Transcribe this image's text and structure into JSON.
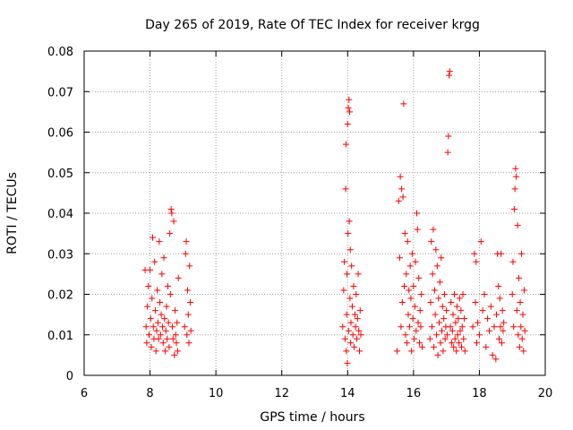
{
  "chart_data": {
    "type": "scatter",
    "title": "Day 265 of 2019, Rate Of TEC Index for receiver krgg",
    "xlabel": "GPS time / hours",
    "ylabel": "ROTI / TECUs",
    "xlim": [
      6,
      20
    ],
    "ylim": [
      0,
      0.08
    ],
    "x_ticks": [
      6,
      8,
      10,
      12,
      14,
      16,
      18,
      20
    ],
    "y_ticks": [
      0,
      0.01,
      0.02,
      0.03,
      0.04,
      0.05,
      0.06,
      0.07,
      0.08
    ],
    "x_tick_labels": [
      "6",
      "8",
      "10",
      "12",
      "14",
      "16",
      "18",
      "20"
    ],
    "y_tick_labels": [
      "0",
      "0.01",
      "0.02",
      "0.03",
      "0.04",
      "0.05",
      "0.06",
      "0.07",
      "0.08"
    ],
    "grid": true,
    "marker": "+",
    "colors": {
      "marker": "#ff0000",
      "grid": "#a0a0a0",
      "axis": "#000000"
    },
    "series": [
      {
        "name": "ROTI",
        "points": [
          [
            7.85,
            0.026
          ],
          [
            7.88,
            0.012
          ],
          [
            7.9,
            0.008
          ],
          [
            7.92,
            0.017
          ],
          [
            7.95,
            0.022
          ],
          [
            7.97,
            0.01
          ],
          [
            8.0,
            0.026
          ],
          [
            8.02,
            0.014
          ],
          [
            8.04,
            0.007
          ],
          [
            8.06,
            0.019
          ],
          [
            8.08,
            0.034
          ],
          [
            8.1,
            0.012
          ],
          [
            8.12,
            0.009
          ],
          [
            8.14,
            0.028
          ],
          [
            8.16,
            0.016
          ],
          [
            8.18,
            0.006
          ],
          [
            8.2,
            0.011
          ],
          [
            8.22,
            0.021
          ],
          [
            8.24,
            0.013
          ],
          [
            8.26,
            0.009
          ],
          [
            8.28,
            0.033
          ],
          [
            8.3,
            0.018
          ],
          [
            8.32,
            0.01
          ],
          [
            8.34,
            0.015
          ],
          [
            8.36,
            0.025
          ],
          [
            8.38,
            0.012
          ],
          [
            8.4,
            0.008
          ],
          [
            8.42,
            0.029
          ],
          [
            8.44,
            0.014
          ],
          [
            8.46,
            0.006
          ],
          [
            8.48,
            0.011
          ],
          [
            8.5,
            0.017
          ],
          [
            8.52,
            0.009
          ],
          [
            8.54,
            0.022
          ],
          [
            8.56,
            0.013
          ],
          [
            8.58,
            0.007
          ],
          [
            8.6,
            0.035
          ],
          [
            8.62,
            0.02
          ],
          [
            8.64,
            0.041
          ],
          [
            8.66,
            0.04
          ],
          [
            8.68,
            0.012
          ],
          [
            8.7,
            0.009
          ],
          [
            8.72,
            0.038
          ],
          [
            8.74,
            0.005
          ],
          [
            8.76,
            0.016
          ],
          [
            8.78,
            0.01
          ],
          [
            8.8,
            0.008
          ],
          [
            8.82,
            0.013
          ],
          [
            8.84,
            0.006
          ],
          [
            8.86,
            0.024
          ],
          [
            9.05,
            0.012
          ],
          [
            9.08,
            0.03
          ],
          [
            9.1,
            0.033
          ],
          [
            9.12,
            0.01
          ],
          [
            9.14,
            0.021
          ],
          [
            9.16,
            0.015
          ],
          [
            9.18,
            0.008
          ],
          [
            9.2,
            0.027
          ],
          [
            9.22,
            0.018
          ],
          [
            9.24,
            0.011
          ],
          [
            13.85,
            0.012
          ],
          [
            13.88,
            0.021
          ],
          [
            13.9,
            0.028
          ],
          [
            13.92,
            0.009
          ],
          [
            13.94,
            0.046
          ],
          [
            13.95,
            0.057
          ],
          [
            13.96,
            0.006
          ],
          [
            13.97,
            0.015
          ],
          [
            13.98,
            0.025
          ],
          [
            13.99,
            0.003
          ],
          [
            14.0,
            0.062
          ],
          [
            14.01,
            0.035
          ],
          [
            14.02,
            0.066
          ],
          [
            14.03,
            0.011
          ],
          [
            14.04,
            0.068
          ],
          [
            14.05,
            0.038
          ],
          [
            14.06,
            0.065
          ],
          [
            14.07,
            0.019
          ],
          [
            14.08,
            0.031
          ],
          [
            14.09,
            0.008
          ],
          [
            14.1,
            0.013
          ],
          [
            14.12,
            0.027
          ],
          [
            14.14,
            0.017
          ],
          [
            14.16,
            0.01
          ],
          [
            14.18,
            0.022
          ],
          [
            14.2,
            0.007
          ],
          [
            14.22,
            0.015
          ],
          [
            14.24,
            0.012
          ],
          [
            14.26,
            0.02
          ],
          [
            14.28,
            0.009
          ],
          [
            14.3,
            0.014
          ],
          [
            14.32,
            0.025
          ],
          [
            14.34,
            0.011
          ],
          [
            14.36,
            0.006
          ],
          [
            14.38,
            0.016
          ],
          [
            14.4,
            0.01
          ],
          [
            15.5,
            0.006
          ],
          [
            15.55,
            0.043
          ],
          [
            15.58,
            0.029
          ],
          [
            15.6,
            0.049
          ],
          [
            15.62,
            0.012
          ],
          [
            15.64,
            0.046
          ],
          [
            15.66,
            0.018
          ],
          [
            15.68,
            0.044
          ],
          [
            15.7,
            0.067
          ],
          [
            15.72,
            0.022
          ],
          [
            15.74,
            0.035
          ],
          [
            15.76,
            0.01
          ],
          [
            15.78,
            0.025
          ],
          [
            15.8,
            0.008
          ],
          [
            15.82,
            0.033
          ],
          [
            15.84,
            0.015
          ],
          [
            15.86,
            0.021
          ],
          [
            15.88,
            0.012
          ],
          [
            15.9,
            0.027
          ],
          [
            15.92,
            0.019
          ],
          [
            15.94,
            0.006
          ],
          [
            15.96,
            0.03
          ],
          [
            15.98,
            0.014
          ],
          [
            16.0,
            0.022
          ],
          [
            16.02,
            0.009
          ],
          [
            16.04,
            0.017
          ],
          [
            16.06,
            0.028
          ],
          [
            16.08,
            0.011
          ],
          [
            16.1,
            0.04
          ],
          [
            16.12,
            0.036
          ],
          [
            16.14,
            0.013
          ],
          [
            16.16,
            0.024
          ],
          [
            16.18,
            0.008
          ],
          [
            16.2,
            0.016
          ],
          [
            16.22,
            0.012
          ],
          [
            16.24,
            0.02
          ],
          [
            16.26,
            0.007
          ],
          [
            16.5,
            0.009
          ],
          [
            16.52,
            0.018
          ],
          [
            16.54,
            0.033
          ],
          [
            16.56,
            0.012
          ],
          [
            16.58,
            0.025
          ],
          [
            16.6,
            0.036
          ],
          [
            16.62,
            0.007
          ],
          [
            16.64,
            0.021
          ],
          [
            16.66,
            0.015
          ],
          [
            16.68,
            0.031
          ],
          [
            16.7,
            0.01
          ],
          [
            16.72,
            0.027
          ],
          [
            16.74,
            0.005
          ],
          [
            16.76,
            0.019
          ],
          [
            16.78,
            0.013
          ],
          [
            16.8,
            0.023
          ],
          [
            16.82,
            0.008
          ],
          [
            16.84,
            0.029
          ],
          [
            16.86,
            0.011
          ],
          [
            16.88,
            0.017
          ],
          [
            16.9,
            0.006
          ],
          [
            16.92,
            0.014
          ],
          [
            16.94,
            0.02
          ],
          [
            16.96,
            0.009
          ],
          [
            16.98,
            0.012
          ],
          [
            17.0,
            0.016
          ],
          [
            17.02,
            0.01
          ],
          [
            17.04,
            0.055
          ],
          [
            17.06,
            0.059
          ],
          [
            17.08,
            0.074
          ],
          [
            17.1,
            0.075
          ],
          [
            17.12,
            0.012
          ],
          [
            17.14,
            0.018
          ],
          [
            17.16,
            0.008
          ],
          [
            17.18,
            0.011
          ],
          [
            17.2,
            0.015
          ],
          [
            17.22,
            0.007
          ],
          [
            17.24,
            0.02
          ],
          [
            17.26,
            0.009
          ],
          [
            17.28,
            0.013
          ],
          [
            17.3,
            0.006
          ],
          [
            17.32,
            0.017
          ],
          [
            17.34,
            0.01
          ],
          [
            17.36,
            0.014
          ],
          [
            17.38,
            0.008
          ],
          [
            17.4,
            0.019
          ],
          [
            17.42,
            0.011
          ],
          [
            17.44,
            0.016
          ],
          [
            17.46,
            0.007
          ],
          [
            17.48,
            0.012
          ],
          [
            17.5,
            0.02
          ],
          [
            17.52,
            0.009
          ],
          [
            17.54,
            0.014
          ],
          [
            17.56,
            0.006
          ],
          [
            17.8,
            0.012
          ],
          [
            17.85,
            0.03
          ],
          [
            17.88,
            0.018
          ],
          [
            17.9,
            0.028
          ],
          [
            17.92,
            0.008
          ],
          [
            17.95,
            0.013
          ],
          [
            18.0,
            0.01
          ],
          [
            18.05,
            0.033
          ],
          [
            18.1,
            0.016
          ],
          [
            18.15,
            0.02
          ],
          [
            18.2,
            0.007
          ],
          [
            18.25,
            0.014
          ],
          [
            18.3,
            0.011
          ],
          [
            18.35,
            0.017
          ],
          [
            18.4,
            0.005
          ],
          [
            18.45,
            0.012
          ],
          [
            18.5,
            0.004
          ],
          [
            18.52,
            0.015
          ],
          [
            18.55,
            0.03
          ],
          [
            18.58,
            0.022
          ],
          [
            18.6,
            0.009
          ],
          [
            18.62,
            0.019
          ],
          [
            18.64,
            0.012
          ],
          [
            18.66,
            0.03
          ],
          [
            18.68,
            0.008
          ],
          [
            18.7,
            0.016
          ],
          [
            18.72,
            0.011
          ],
          [
            18.74,
            0.013
          ],
          [
            19.0,
            0.02
          ],
          [
            19.02,
            0.028
          ],
          [
            19.04,
            0.012
          ],
          [
            19.06,
            0.041
          ],
          [
            19.08,
            0.046
          ],
          [
            19.1,
            0.051
          ],
          [
            19.12,
            0.049
          ],
          [
            19.14,
            0.016
          ],
          [
            19.16,
            0.037
          ],
          [
            19.18,
            0.01
          ],
          [
            19.2,
            0.024
          ],
          [
            19.22,
            0.007
          ],
          [
            19.24,
            0.018
          ],
          [
            19.26,
            0.012
          ],
          [
            19.28,
            0.03
          ],
          [
            19.3,
            0.009
          ],
          [
            19.32,
            0.015
          ],
          [
            19.34,
            0.006
          ],
          [
            19.36,
            0.021
          ],
          [
            19.38,
            0.011
          ]
        ]
      }
    ]
  }
}
